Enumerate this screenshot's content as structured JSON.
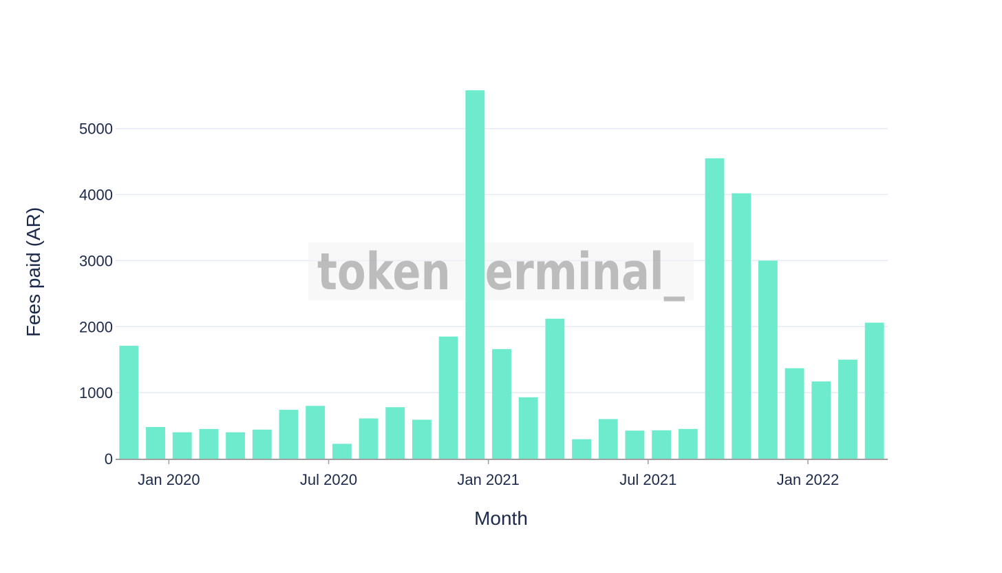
{
  "watermark": "token terminal_",
  "colors": {
    "bar": "#6eebcd",
    "grid": "#e3e9f5",
    "axis_line": "#9e9e9e",
    "text": "#1b2a4a",
    "watermark_box": "#f3f3f5"
  },
  "chart_data": {
    "type": "bar",
    "title": "",
    "xlabel": "Month",
    "ylabel": "Fees paid (AR)",
    "ylim": [
      0,
      5800
    ],
    "grid": true,
    "legend": "none",
    "categories": [
      "2019-11",
      "2019-12",
      "2020-01",
      "2020-02",
      "2020-03",
      "2020-04",
      "2020-05",
      "2020-06",
      "2020-07",
      "2020-08",
      "2020-09",
      "2020-10",
      "2020-11",
      "2020-12",
      "2021-01",
      "2021-02",
      "2021-03",
      "2021-04",
      "2021-05",
      "2021-06",
      "2021-07",
      "2021-08",
      "2021-09",
      "2021-10",
      "2021-11",
      "2021-12",
      "2022-01",
      "2022-02",
      "2022-03"
    ],
    "values": [
      1710,
      480,
      400,
      450,
      400,
      440,
      740,
      800,
      225,
      610,
      780,
      590,
      1850,
      5580,
      1660,
      930,
      2120,
      295,
      600,
      425,
      430,
      450,
      4550,
      4020,
      3000,
      1370,
      1170,
      1500,
      2060
    ],
    "y_ticks": [
      "0",
      "1000",
      "2000",
      "3000",
      "4000",
      "5000"
    ],
    "x_ticks": [
      {
        "date": "2020-01",
        "label": "Jan 2020"
      },
      {
        "date": "2020-07",
        "label": "Jul 2020"
      },
      {
        "date": "2021-01",
        "label": "Jan 2021"
      },
      {
        "date": "2021-07",
        "label": "Jul 2021"
      },
      {
        "date": "2022-01",
        "label": "Jan 2022"
      }
    ]
  }
}
